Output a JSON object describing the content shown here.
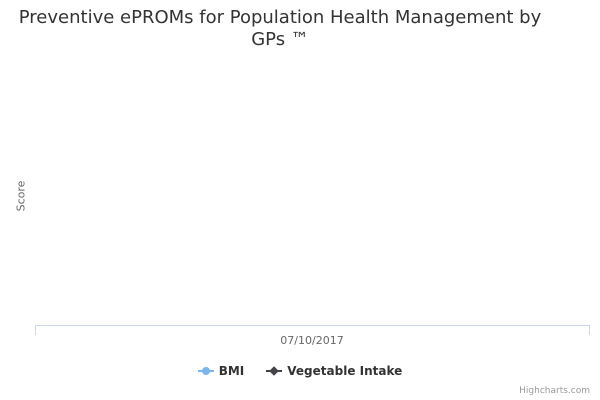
{
  "chart_data": {
    "type": "line",
    "title": "Preventive ePROMs for Population Health Management by GPs ™",
    "xlabel": "",
    "ylabel": "Score",
    "categories": [
      "07/10/2017"
    ],
    "series": [
      {
        "name": "BMI",
        "values": [
          null
        ],
        "color": "#7cb5ec",
        "marker": "circle"
      },
      {
        "name": "Vegetable Intake",
        "values": [
          null
        ],
        "color": "#434348",
        "marker": "diamond"
      }
    ],
    "grid": false,
    "legend": "bottom-center"
  },
  "credits": "Highcharts.com"
}
